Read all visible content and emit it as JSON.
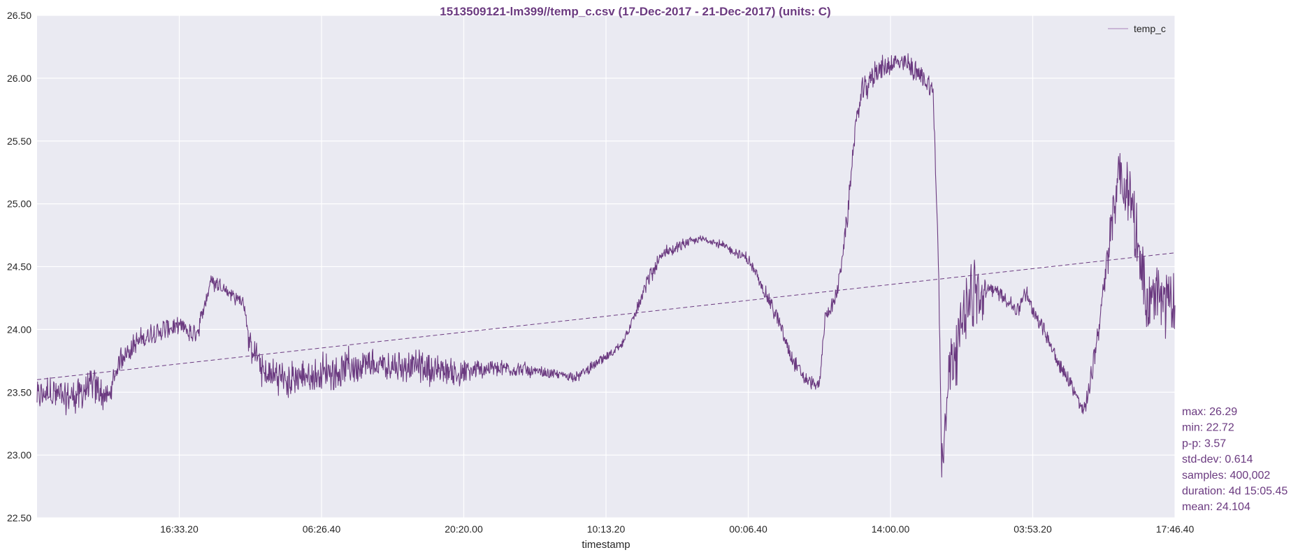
{
  "chart_data": {
    "type": "line",
    "title": "1513509121-lm399//temp_c.csv (17-Dec-2017 - 21-Dec-2017) (units: C)",
    "xlabel": "timestamp",
    "ylabel": "",
    "ylim": [
      22.5,
      26.5
    ],
    "yticks": [
      22.5,
      23.0,
      23.5,
      24.0,
      24.5,
      25.0,
      25.5,
      26.0,
      26.5
    ],
    "ytick_labels": [
      "22.50",
      "23.00",
      "23.50",
      "24.00",
      "24.50",
      "25.00",
      "25.50",
      "26.00",
      "26.50"
    ],
    "xlim": [
      0,
      400000
    ],
    "xticks": [
      50000,
      100000,
      150000,
      200000,
      250000,
      300000,
      350000,
      400000
    ],
    "xtick_labels": [
      "16:33.20",
      "06:26.40",
      "20:20.00",
      "10:13.20",
      "00:06.40",
      "14:00.00",
      "03:53.20",
      "17:46.40"
    ],
    "grid": true,
    "legend": "top-right",
    "series": [
      {
        "name": "temp_c",
        "kind": "noisy-line",
        "x": [
          0,
          5000,
          10000,
          15000,
          20000,
          25000,
          30000,
          35000,
          40000,
          45000,
          50000,
          55000,
          57000,
          58000,
          61000,
          65000,
          70000,
          73000,
          74000,
          75000,
          80000,
          90000,
          100000,
          110000,
          120000,
          130000,
          140000,
          150000,
          160000,
          170000,
          180000,
          190000,
          195000,
          200000,
          205000,
          210000,
          215000,
          220000,
          225000,
          230000,
          235000,
          240000,
          245000,
          250000,
          255000,
          260000,
          265000,
          270000,
          275000,
          277000,
          280000,
          282000,
          285000,
          287000,
          290000,
          295000,
          300000,
          305000,
          310000,
          315000,
          317000,
          318000,
          320000,
          324000,
          327000,
          330000,
          332000,
          335000,
          340000,
          345000,
          347000,
          350000,
          355000,
          360000,
          365000,
          368000,
          370000,
          375000,
          378000,
          380000,
          385000,
          388000,
          390000,
          395000,
          400000
        ],
        "y": [
          23.45,
          23.5,
          23.45,
          23.5,
          23.55,
          23.45,
          23.8,
          23.9,
          23.95,
          24.0,
          24.02,
          23.95,
          24.0,
          24.1,
          24.4,
          24.35,
          24.25,
          24.2,
          24.0,
          23.85,
          23.65,
          23.6,
          23.65,
          23.7,
          23.7,
          23.72,
          23.68,
          23.65,
          23.7,
          23.68,
          23.65,
          23.62,
          23.7,
          23.78,
          23.85,
          24.1,
          24.4,
          24.6,
          24.65,
          24.7,
          24.72,
          24.68,
          24.62,
          24.55,
          24.35,
          24.1,
          23.8,
          23.6,
          23.55,
          24.1,
          24.2,
          24.4,
          24.9,
          25.5,
          25.9,
          26.05,
          26.1,
          26.12,
          26.05,
          25.9,
          24.4,
          22.9,
          23.6,
          24.0,
          24.2,
          24.3,
          24.2,
          24.35,
          24.25,
          24.15,
          24.3,
          24.15,
          23.95,
          23.7,
          23.5,
          23.35,
          23.55,
          24.3,
          24.9,
          25.2,
          25.0,
          24.5,
          24.2,
          24.3,
          24.2
        ],
        "noise": [
          0.17,
          0.2,
          0.2,
          0.2,
          0.2,
          0.17,
          0.15,
          0.12,
          0.12,
          0.12,
          0.1,
          0.12,
          0.12,
          0.1,
          0.1,
          0.08,
          0.08,
          0.08,
          0.1,
          0.18,
          0.2,
          0.2,
          0.2,
          0.2,
          0.18,
          0.18,
          0.18,
          0.15,
          0.1,
          0.08,
          0.06,
          0.06,
          0.06,
          0.06,
          0.06,
          0.08,
          0.1,
          0.08,
          0.07,
          0.05,
          0.04,
          0.05,
          0.05,
          0.07,
          0.08,
          0.1,
          0.1,
          0.08,
          0.07,
          0.07,
          0.1,
          0.12,
          0.12,
          0.12,
          0.15,
          0.15,
          0.12,
          0.12,
          0.12,
          0.12,
          0.2,
          0.25,
          0.3,
          0.4,
          0.4,
          0.4,
          0.3,
          0.08,
          0.08,
          0.08,
          0.1,
          0.1,
          0.1,
          0.1,
          0.1,
          0.1,
          0.12,
          0.2,
          0.3,
          0.35,
          0.4,
          0.4,
          0.4,
          0.4,
          0.35
        ],
        "color": "#6b3a80",
        "style": "solid"
      },
      {
        "kind": "trend",
        "x": [
          0,
          400000
        ],
        "y": [
          23.6,
          24.61
        ],
        "color": "#6b3a80",
        "style": "dashed"
      }
    ],
    "stats": {
      "max": "max: 26.29",
      "min": "min: 22.72",
      "pp": "p-p: 3.57",
      "std": "std-dev: 0.614",
      "samples": "samples: 400,002",
      "duration": "duration: 4d 15:05.45",
      "mean": "mean: 24.104"
    },
    "colors": {
      "series": "#6b3a80",
      "title": "#6b3a80",
      "stats": "#6b3a80",
      "plot_bg": "#eaeaf2",
      "grid": "#ffffff",
      "legend_swatch": "#c9b6d6"
    }
  }
}
